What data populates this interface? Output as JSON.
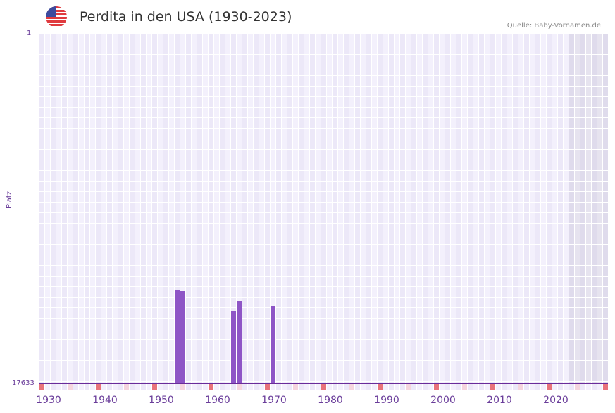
{
  "header": {
    "flag_icon": "usa-flag-icon",
    "title": "Perdita in den USA (1930-2023)",
    "source": "Quelle: Baby-Vornamen.de"
  },
  "colors": {
    "bar": "#8e55c6",
    "axis": "#6a2c9a",
    "decade_marker": "#e8737b",
    "half_decade_marker": "#f5d5de",
    "grid_light": "#f3f0fc",
    "grid_dark": "#ece8f8",
    "future_shade": "#e2deee"
  },
  "chart_data": {
    "type": "bar",
    "title": "Perdita in den USA (1930-2023)",
    "xlabel": "",
    "ylabel": "Platz",
    "y_inverted": true,
    "ylim": [
      1,
      17633
    ],
    "xlim": [
      1928,
      2028
    ],
    "x_ticks": [
      1930,
      1940,
      1950,
      1960,
      1970,
      1980,
      1990,
      2000,
      2010,
      2020
    ],
    "y_ticks": [
      1,
      17633
    ],
    "grid": true,
    "shaded_region": [
      2022,
      2028
    ],
    "categories": [
      1952,
      1953,
      1962,
      1963,
      1969
    ],
    "values": [
      12915,
      12950,
      13979,
      13482,
      13731
    ],
    "note": "Values are popularity ranks (lower = more popular); only years shown have data"
  },
  "axes": {
    "y_top": "1",
    "y_bottom": "17633",
    "y_label": "Platz",
    "x_labels": [
      "1930",
      "1940",
      "1950",
      "1960",
      "1970",
      "1980",
      "1990",
      "2000",
      "2010",
      "2020"
    ]
  }
}
